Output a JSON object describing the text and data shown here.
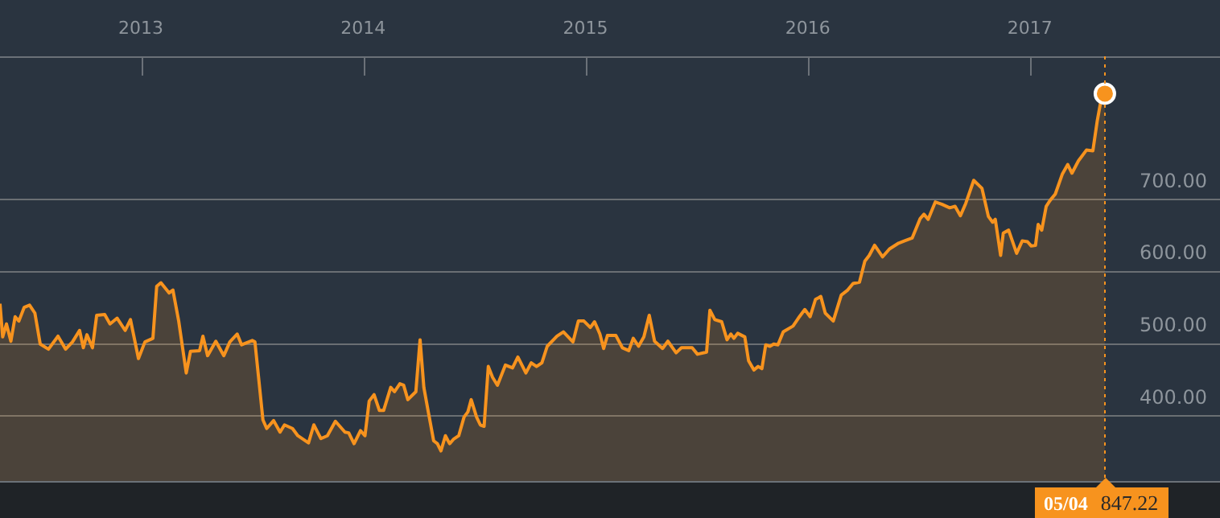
{
  "chart_data": {
    "type": "area",
    "x": [
      2012.366,
      2012.378,
      2012.395,
      2012.415,
      2012.434,
      2012.451,
      2012.475,
      2012.499,
      2012.523,
      2012.547,
      2012.584,
      2012.627,
      2012.661,
      2012.692,
      2012.724,
      2012.741,
      2012.757,
      2012.782,
      2012.801,
      2012.837,
      2012.861,
      2012.893,
      2012.929,
      2012.953,
      2012.989,
      2013.018,
      2013.054,
      2013.071,
      2013.09,
      2013.127,
      2013.144,
      2013.17,
      2013.204,
      2013.223,
      2013.264,
      2013.279,
      2013.3,
      2013.337,
      2013.373,
      2013.4,
      2013.433,
      2013.453,
      2013.501,
      2013.513,
      2013.549,
      2013.566,
      2013.597,
      2013.626,
      2013.646,
      2013.682,
      2013.706,
      2013.754,
      2013.778,
      2013.81,
      2013.839,
      2013.875,
      2013.918,
      2013.935,
      2013.959,
      2013.988,
      2014.008,
      2014.027,
      2014.049,
      2014.073,
      2014.092,
      2014.124,
      2014.141,
      2014.165,
      2014.182,
      2014.201,
      2014.237,
      2014.256,
      2014.273,
      2014.293,
      2014.317,
      2014.334,
      2014.35,
      2014.37,
      2014.389,
      2014.406,
      2014.43,
      2014.454,
      2014.471,
      2014.486,
      2014.51,
      2014.527,
      2014.544,
      2014.563,
      2014.582,
      2014.604,
      2014.64,
      2014.672,
      2014.696,
      2014.732,
      2014.756,
      2014.78,
      2014.804,
      2014.828,
      2014.872,
      2014.901,
      2014.944,
      2014.968,
      2014.993,
      2015.022,
      2015.041,
      2015.065,
      2015.082,
      2015.099,
      2015.137,
      2015.166,
      2015.195,
      2015.215,
      2015.239,
      2015.263,
      2015.287,
      2015.311,
      2015.347,
      2015.371,
      2015.408,
      2015.432,
      2015.48,
      2015.504,
      2015.545,
      2015.56,
      2015.582,
      2015.613,
      2015.637,
      2015.654,
      2015.668,
      2015.685,
      2015.717,
      2015.734,
      2015.758,
      2015.777,
      2015.794,
      2015.811,
      2015.83,
      2015.847,
      2015.866,
      2015.89,
      2015.934,
      2015.958,
      2015.987,
      2016.011,
      2016.035,
      2016.059,
      2016.079,
      2016.115,
      2016.151,
      2016.18,
      2016.204,
      2016.233,
      2016.257,
      2016.277,
      2016.301,
      2016.337,
      2016.368,
      2016.409,
      2016.434,
      2016.47,
      2016.506,
      2016.523,
      2016.542,
      2016.574,
      2016.603,
      2016.639,
      2016.663,
      2016.687,
      2016.711,
      2016.747,
      2016.784,
      2016.813,
      2016.832,
      2016.844,
      2016.868,
      2016.88,
      2016.904,
      2016.94,
      2016.965,
      2016.989,
      2017.006,
      2017.025,
      2017.037,
      2017.053,
      2017.073,
      2017.09,
      2017.114,
      2017.146,
      2017.17,
      2017.189,
      2017.218,
      2017.254,
      2017.283,
      2017.303,
      2017.319,
      2017.337
    ],
    "series": [
      {
        "color": "#f7931e",
        "values": [
          556,
          510,
          528,
          504,
          538,
          532,
          551,
          554,
          543,
          500,
          493,
          511,
          493,
          503,
          519,
          495,
          513,
          495,
          540,
          541,
          528,
          536,
          519,
          534,
          480,
          503,
          508,
          580,
          585,
          571,
          575,
          532,
          460,
          490,
          491,
          511,
          484,
          504,
          484,
          503,
          514,
          499,
          505,
          503,
          395,
          383,
          394,
          378,
          388,
          383,
          373,
          363,
          388,
          369,
          373,
          393,
          378,
          377,
          362,
          380,
          373,
          421,
          430,
          408,
          408,
          440,
          434,
          445,
          443,
          423,
          434,
          506,
          440,
          406,
          366,
          362,
          352,
          373,
          362,
          368,
          373,
          399,
          406,
          423,
          399,
          388,
          386,
          469,
          454,
          443,
          471,
          467,
          482,
          460,
          474,
          469,
          474,
          497,
          511,
          517,
          503,
          532,
          532,
          523,
          531,
          514,
          494,
          512,
          512,
          495,
          491,
          508,
          497,
          510,
          540,
          504,
          494,
          504,
          488,
          495,
          495,
          486,
          489,
          547,
          534,
          531,
          506,
          514,
          508,
          515,
          510,
          477,
          464,
          469,
          466,
          499,
          497,
          500,
          499,
          517,
          525,
          536,
          548,
          538,
          562,
          566,
          543,
          532,
          568,
          575,
          584,
          586,
          615,
          623,
          637,
          621,
          632,
          640,
          643,
          647,
          674,
          680,
          673,
          697,
          694,
          689,
          691,
          678,
          695,
          727,
          716,
          677,
          669,
          673,
          623,
          654,
          658,
          626,
          643,
          642,
          636,
          637,
          666,
          658,
          691,
          699,
          708,
          736,
          749,
          737,
          754,
          769,
          768,
          810,
          837,
          847.22
        ]
      },
      {
        "type": "scatter",
        "color": "#f7931e",
        "marker": "circle",
        "x": [
          2017.337
        ],
        "values": [
          847.22
        ]
      }
    ],
    "xlim": [
      2012.366,
      2017.855
    ],
    "ylim": [
      308,
      899
    ],
    "xticks": [
      2013,
      2014,
      2015,
      2016,
      2017
    ],
    "yticks": [
      {
        "value": 400,
        "label": "400.00"
      },
      {
        "value": 500,
        "label": "500.00"
      },
      {
        "value": 600,
        "label": "600.00"
      },
      {
        "value": 700,
        "label": "700.00"
      }
    ],
    "grid": "y",
    "marker": "none",
    "legend": false,
    "ref_lines": [
      {
        "axis": "x",
        "value": 2017.337,
        "color": "#f7931e",
        "line_style": "dotted"
      }
    ],
    "annotations": [
      "05/04",
      "847.22"
    ]
  }
}
